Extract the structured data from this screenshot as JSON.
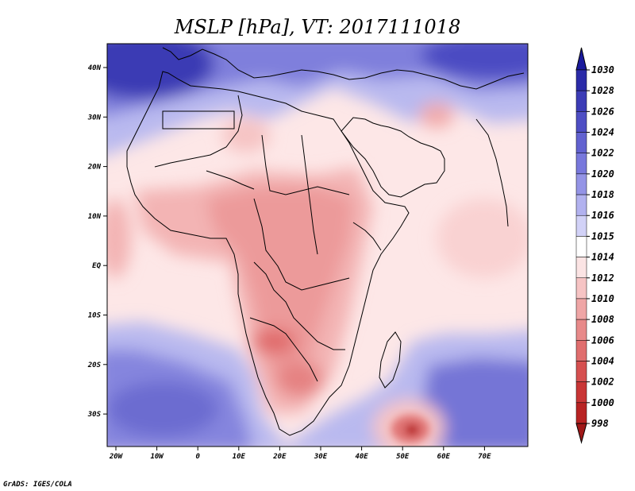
{
  "title": "MSLP [hPa], VT: 2017111018",
  "footer": "GrADS: IGES/COLA",
  "map": {
    "lat_labels": [
      "40N",
      "30N",
      "20N",
      "10N",
      "EQ",
      "10S",
      "20S",
      "30S"
    ],
    "lon_labels": [
      "20W",
      "10W",
      "0",
      "10E",
      "20E",
      "30E",
      "40E",
      "50E",
      "60E",
      "70E"
    ],
    "features": {
      "high_north_atlantic": "1030",
      "low_south_of_madagascar": "998"
    }
  },
  "colorbar": {
    "levels": [
      "1030",
      "1028",
      "1026",
      "1024",
      "1022",
      "1020",
      "1018",
      "1016",
      "1015",
      "1014",
      "1012",
      "1010",
      "1008",
      "1006",
      "1004",
      "1002",
      "1000",
      "998"
    ],
    "colors": [
      "#1a1a9c",
      "#2b2ba8",
      "#3c3cb6",
      "#4e4ec4",
      "#6262d0",
      "#7878dc",
      "#9494e6",
      "#b2b2ef",
      "#d2d2f7",
      "#ffffff",
      "#fbe4e4",
      "#f6c4c4",
      "#efa6a6",
      "#e88a8a",
      "#e06e6e",
      "#d65050",
      "#c93636",
      "#b82323",
      "#a01818"
    ]
  }
}
